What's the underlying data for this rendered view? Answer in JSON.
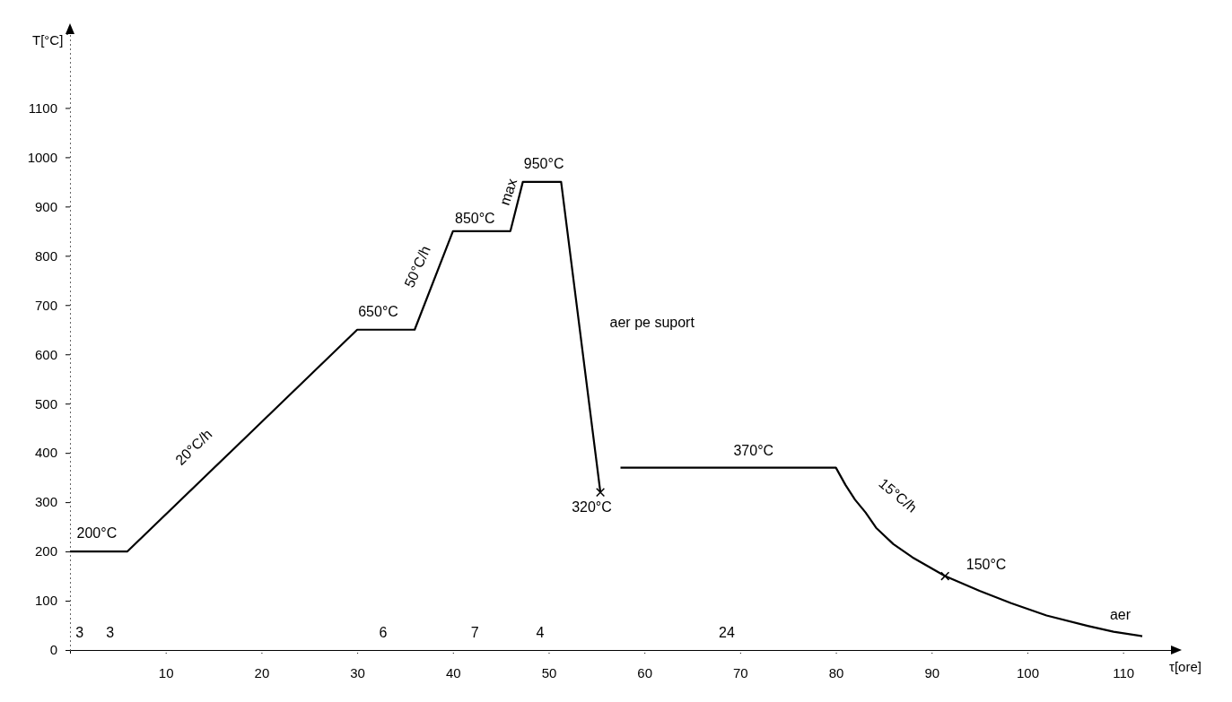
{
  "chart_data": {
    "type": "line",
    "ylabel": "T[°C]",
    "xlabel": "τ[ore]",
    "xlim": [
      0,
      115
    ],
    "ylim": [
      0,
      1250
    ],
    "xticks": [
      10,
      20,
      30,
      40,
      50,
      60,
      70,
      80,
      90,
      100,
      110
    ],
    "yticks": [
      0,
      100,
      200,
      300,
      400,
      500,
      600,
      700,
      800,
      900,
      1000,
      1100
    ],
    "grid": false,
    "series": [
      {
        "type": "line",
        "color": "#000000",
        "marker": "none",
        "x": [
          0,
          6,
          30,
          36,
          40,
          46,
          47.3,
          51.3,
          55.4,
          56.5,
          57.5,
          80,
          81,
          82,
          83.1,
          84.2,
          86,
          88,
          91.4,
          95,
          98.3,
          102,
          106.3,
          109,
          112
        ],
        "values": [
          200,
          200,
          650,
          650,
          850,
          850,
          950,
          950,
          320,
          null,
          370,
          370,
          335,
          305,
          279,
          248,
          215,
          188,
          150,
          120,
          95,
          70,
          49,
          37,
          28
        ]
      },
      {
        "type": "scatter",
        "color": "#000000",
        "marker": "cross",
        "x": [
          55.4,
          91.4
        ],
        "values": [
          320,
          150
        ]
      }
    ],
    "annotations": [
      "200°C",
      "20°C/h",
      "650°C",
      "50°C/h",
      "850°C",
      "max",
      "950°C",
      "aer pe suport",
      "320°C",
      "370°C",
      "15°C/h",
      "150°C",
      "aer",
      "3",
      "3",
      "6",
      "7",
      "4",
      "24"
    ]
  }
}
